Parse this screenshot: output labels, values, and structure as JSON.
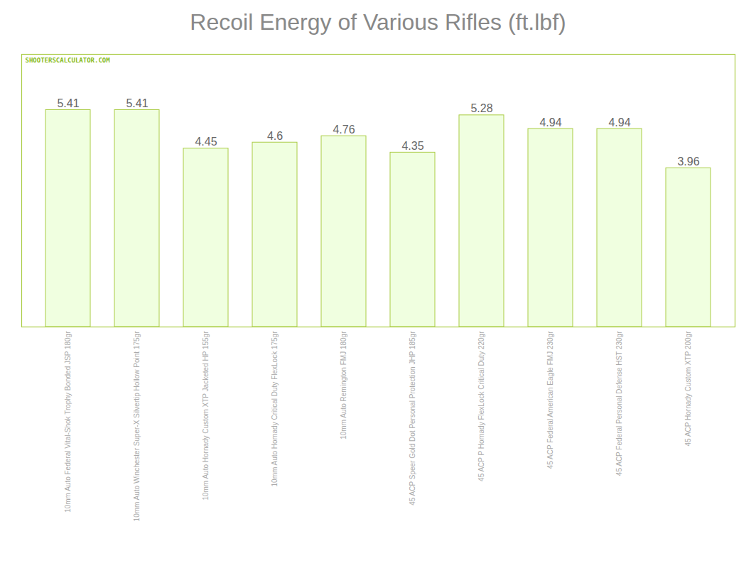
{
  "chart_data": {
    "type": "bar",
    "title": "Recoil Energy of Various Rifles (ft.lbf)",
    "categories": [
      "10mm Auto Federal Vital-Shok Trophy Bonded JSP 180gr",
      "10mm Auto Winchester Super-X Silvertip Hollow Point 175gr",
      "10mm Auto Hornady Custom XTP Jacketed HP 155gr",
      "10mm Auto Hornady Critical Duty FlexLock 175gr",
      "10mm Auto Remington FMJ 180gr",
      "45 ACP Speer Gold Dot Personal Protection JHP 185gr",
      "45 ACP P Hornady FlexLock Critical Duty 220gr",
      "45 ACP Federal American Eagle FMJ 230gr",
      "45 ACP Federal Personal Defense HST 230gr",
      "45 ACP Hornady Custom XTP 200gr"
    ],
    "values": [
      5.41,
      5.41,
      4.45,
      4.6,
      4.76,
      4.35,
      5.28,
      4.94,
      4.94,
      3.96
    ],
    "color": "#f0ffe0",
    "ylim": [
      0,
      6.8
    ],
    "yticks": [],
    "grid": false,
    "data_labels": true,
    "tick_labels": "x",
    "annotations": [
      "SHOOTERSCALCULATOR.COM"
    ]
  }
}
